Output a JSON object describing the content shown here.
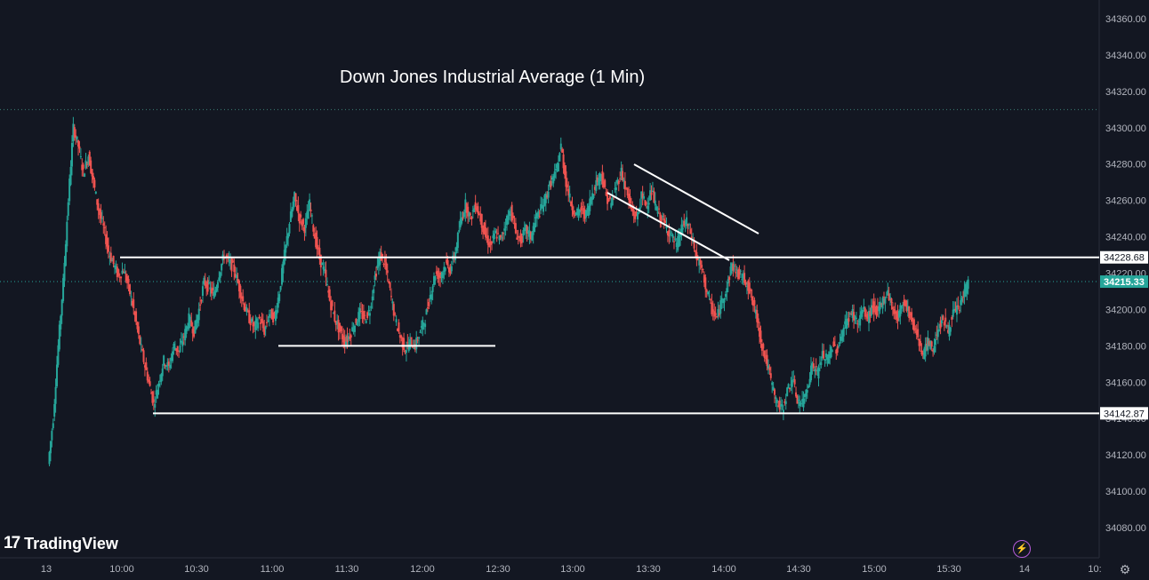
{
  "brand": {
    "name": "TradingView",
    "mark": "17"
  },
  "icons": {
    "settings": "gear-icon",
    "replay": "lightning-icon"
  },
  "colors": {
    "background": "#131722",
    "up": "#26a69a",
    "down": "#ef5350",
    "line": "#ffffff",
    "last_price": "#26a69a"
  },
  "chart_data": {
    "type": "candlestick",
    "title": "Down Jones Industrial Average (1 Min)",
    "y_ticks": [
      34080,
      34100,
      34120,
      34140,
      34160,
      34180,
      34200,
      34220,
      34240,
      34260,
      34280,
      34300,
      34320,
      34340,
      34360
    ],
    "y_tick_labels": [
      "34080.00",
      "34100.00",
      "34120.00",
      "34140.00",
      "34160.00",
      "34180.00",
      "34200.00",
      "34220.00",
      "34240.00",
      "34260.00",
      "34280.00",
      "34300.00",
      "34320.00",
      "34340.00",
      "34360.00"
    ],
    "x_tick_labels": [
      "13",
      "10:00",
      "10:30",
      "11:00",
      "11:30",
      "12:00",
      "12:30",
      "13:00",
      "13:30",
      "14:00",
      "14:30",
      "15:00",
      "15:30",
      "14",
      "10:"
    ],
    "horizontal_levels": [
      {
        "value": 34228.68,
        "label": "34228.68"
      },
      {
        "value": 34142.87,
        "label": "34142.87"
      }
    ],
    "last_price": {
      "value": 34215.33,
      "label": "34215.33"
    },
    "session_high_dotted": 34310,
    "support_segment": 34180,
    "price_path": [
      [
        "09:31",
        34115
      ],
      [
        "09:33",
        34140
      ],
      [
        "09:35",
        34180
      ],
      [
        "09:37",
        34215
      ],
      [
        "09:39",
        34260
      ],
      [
        "09:41",
        34300
      ],
      [
        "09:43",
        34290
      ],
      [
        "09:45",
        34275
      ],
      [
        "09:47",
        34285
      ],
      [
        "09:49",
        34270
      ],
      [
        "09:51",
        34255
      ],
      [
        "09:53",
        34245
      ],
      [
        "09:55",
        34232
      ],
      [
        "09:57",
        34225
      ],
      [
        "09:59",
        34218
      ],
      [
        "10:01",
        34222
      ],
      [
        "10:03",
        34212
      ],
      [
        "10:05",
        34200
      ],
      [
        "10:07",
        34185
      ],
      [
        "10:09",
        34172
      ],
      [
        "10:11",
        34160
      ],
      [
        "10:13",
        34148
      ],
      [
        "10:15",
        34160
      ],
      [
        "10:17",
        34172
      ],
      [
        "10:19",
        34168
      ],
      [
        "10:21",
        34180
      ],
      [
        "10:23",
        34177
      ],
      [
        "10:25",
        34185
      ],
      [
        "10:27",
        34195
      ],
      [
        "10:29",
        34188
      ],
      [
        "10:31",
        34200
      ],
      [
        "10:33",
        34215
      ],
      [
        "10:35",
        34212
      ],
      [
        "10:37",
        34208
      ],
      [
        "10:39",
        34220
      ],
      [
        "10:41",
        34230
      ],
      [
        "10:43",
        34226
      ],
      [
        "10:45",
        34222
      ],
      [
        "10:47",
        34212
      ],
      [
        "10:49",
        34202
      ],
      [
        "10:51",
        34195
      ],
      [
        "10:53",
        34190
      ],
      [
        "10:55",
        34195
      ],
      [
        "10:57",
        34188
      ],
      [
        "10:59",
        34198
      ],
      [
        "11:01",
        34195
      ],
      [
        "11:03",
        34210
      ],
      [
        "11:05",
        34230
      ],
      [
        "11:07",
        34248
      ],
      [
        "11:09",
        34262
      ],
      [
        "11:11",
        34250
      ],
      [
        "11:13",
        34245
      ],
      [
        "11:15",
        34258
      ],
      [
        "11:17",
        34240
      ],
      [
        "11:19",
        34228
      ],
      [
        "11:21",
        34220
      ],
      [
        "11:23",
        34205
      ],
      [
        "11:25",
        34195
      ],
      [
        "11:27",
        34188
      ],
      [
        "11:29",
        34182
      ],
      [
        "11:31",
        34186
      ],
      [
        "11:33",
        34192
      ],
      [
        "11:35",
        34198
      ],
      [
        "11:37",
        34195
      ],
      [
        "11:39",
        34200
      ],
      [
        "11:41",
        34218
      ],
      [
        "11:43",
        34230
      ],
      [
        "11:45",
        34225
      ],
      [
        "11:47",
        34210
      ],
      [
        "11:49",
        34195
      ],
      [
        "11:51",
        34185
      ],
      [
        "11:53",
        34178
      ],
      [
        "11:55",
        34182
      ],
      [
        "11:57",
        34180
      ],
      [
        "11:59",
        34188
      ],
      [
        "12:01",
        34195
      ],
      [
        "12:03",
        34208
      ],
      [
        "12:05",
        34220
      ],
      [
        "12:07",
        34218
      ],
      [
        "12:09",
        34225
      ],
      [
        "12:11",
        34222
      ],
      [
        "12:13",
        34232
      ],
      [
        "12:15",
        34248
      ],
      [
        "12:17",
        34258
      ],
      [
        "12:19",
        34250
      ],
      [
        "12:21",
        34258
      ],
      [
        "12:23",
        34250
      ],
      [
        "12:25",
        34240
      ],
      [
        "12:27",
        34235
      ],
      [
        "12:29",
        34242
      ],
      [
        "12:31",
        34238
      ],
      [
        "12:33",
        34248
      ],
      [
        "12:35",
        34255
      ],
      [
        "12:37",
        34242
      ],
      [
        "12:39",
        34238
      ],
      [
        "12:41",
        34244
      ],
      [
        "12:43",
        34240
      ],
      [
        "12:45",
        34250
      ],
      [
        "12:47",
        34255
      ],
      [
        "12:49",
        34262
      ],
      [
        "12:51",
        34270
      ],
      [
        "12:53",
        34275
      ],
      [
        "12:55",
        34290
      ],
      [
        "12:57",
        34270
      ],
      [
        "12:59",
        34258
      ],
      [
        "13:01",
        34252
      ],
      [
        "13:03",
        34255
      ],
      [
        "13:05",
        34252
      ],
      [
        "13:07",
        34262
      ],
      [
        "13:09",
        34270
      ],
      [
        "13:11",
        34275
      ],
      [
        "13:13",
        34262
      ],
      [
        "13:15",
        34258
      ],
      [
        "13:17",
        34268
      ],
      [
        "13:19",
        34276
      ],
      [
        "13:21",
        34265
      ],
      [
        "13:23",
        34255
      ],
      [
        "13:25",
        34250
      ],
      [
        "13:27",
        34262
      ],
      [
        "13:29",
        34258
      ],
      [
        "13:31",
        34265
      ],
      [
        "13:33",
        34255
      ],
      [
        "13:35",
        34250
      ],
      [
        "13:37",
        34245
      ],
      [
        "13:39",
        34240
      ],
      [
        "13:41",
        34235
      ],
      [
        "13:43",
        34245
      ],
      [
        "13:45",
        34248
      ],
      [
        "13:47",
        34240
      ],
      [
        "13:49",
        34228
      ],
      [
        "13:51",
        34222
      ],
      [
        "13:53",
        34210
      ],
      [
        "13:55",
        34200
      ],
      [
        "13:57",
        34195
      ],
      [
        "13:59",
        34205
      ],
      [
        "14:01",
        34212
      ],
      [
        "14:03",
        34225
      ],
      [
        "14:05",
        34220
      ],
      [
        "14:07",
        34218
      ],
      [
        "14:09",
        34215
      ],
      [
        "14:11",
        34205
      ],
      [
        "14:13",
        34195
      ],
      [
        "14:15",
        34180
      ],
      [
        "14:17",
        34170
      ],
      [
        "14:19",
        34158
      ],
      [
        "14:21",
        34148
      ],
      [
        "14:23",
        34145
      ],
      [
        "14:25",
        34155
      ],
      [
        "14:27",
        34162
      ],
      [
        "14:29",
        34150
      ],
      [
        "14:31",
        34148
      ],
      [
        "14:33",
        34158
      ],
      [
        "14:35",
        34170
      ],
      [
        "14:37",
        34165
      ],
      [
        "14:39",
        34175
      ],
      [
        "14:41",
        34172
      ],
      [
        "14:43",
        34180
      ],
      [
        "14:45",
        34178
      ],
      [
        "14:47",
        34188
      ],
      [
        "14:49",
        34195
      ],
      [
        "14:51",
        34198
      ],
      [
        "14:53",
        34192
      ],
      [
        "14:55",
        34200
      ],
      [
        "14:57",
        34195
      ],
      [
        "14:59",
        34202
      ],
      [
        "15:01",
        34198
      ],
      [
        "15:03",
        34205
      ],
      [
        "15:05",
        34210
      ],
      [
        "15:07",
        34200
      ],
      [
        "15:09",
        34195
      ],
      [
        "15:11",
        34205
      ],
      [
        "15:13",
        34200
      ],
      [
        "15:15",
        34192
      ],
      [
        "15:17",
        34185
      ],
      [
        "15:19",
        34175
      ],
      [
        "15:21",
        34182
      ],
      [
        "15:23",
        34178
      ],
      [
        "15:25",
        34190
      ],
      [
        "15:27",
        34195
      ],
      [
        "15:29",
        34188
      ],
      [
        "15:31",
        34198
      ],
      [
        "15:33",
        34200
      ],
      [
        "15:35",
        34208
      ],
      [
        "15:37",
        34215
      ]
    ]
  }
}
